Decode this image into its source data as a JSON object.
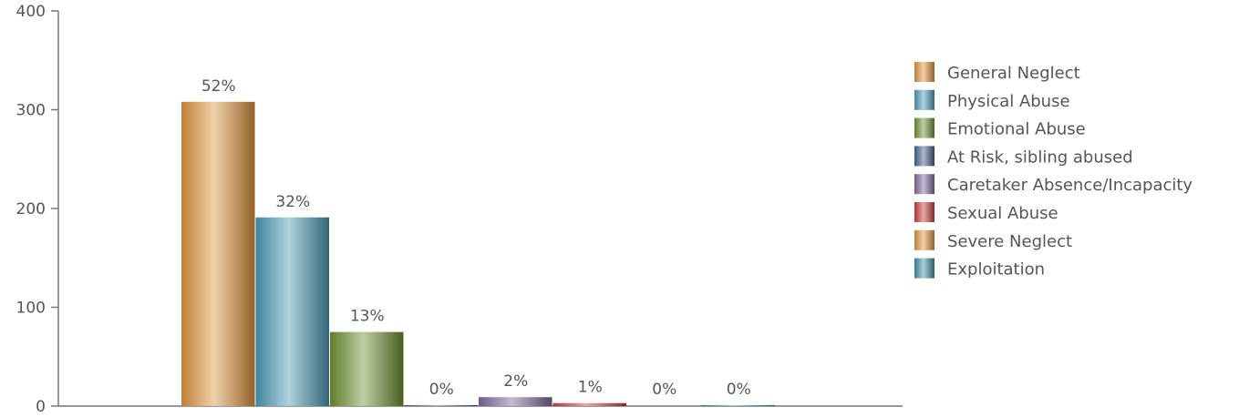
{
  "chart_data": {
    "type": "bar",
    "title": "",
    "xlabel": "",
    "ylabel": "",
    "ylim": [
      0,
      400
    ],
    "yticks": [
      0,
      100,
      200,
      300,
      400
    ],
    "grid": false,
    "legend_position": "right",
    "categories": [
      "General Neglect",
      "Physical Abuse",
      "Emotional Abuse",
      "At Risk, sibling abused",
      "Caretaker Absence/Incapacity",
      "Sexual Abuse",
      "Severe Neglect",
      "Exploitation"
    ],
    "values": [
      308,
      191,
      75,
      1,
      9,
      3,
      0,
      1
    ],
    "data_labels": [
      "52%",
      "32%",
      "13%",
      "0%",
      "2%",
      "1%",
      "0%",
      "0%"
    ],
    "colors": [
      "#E0963F",
      "#4E9BB5",
      "#6E9232",
      "#44608E",
      "#7E6B9B",
      "#C8403E",
      "#E0963F",
      "#3F8FA5"
    ]
  }
}
